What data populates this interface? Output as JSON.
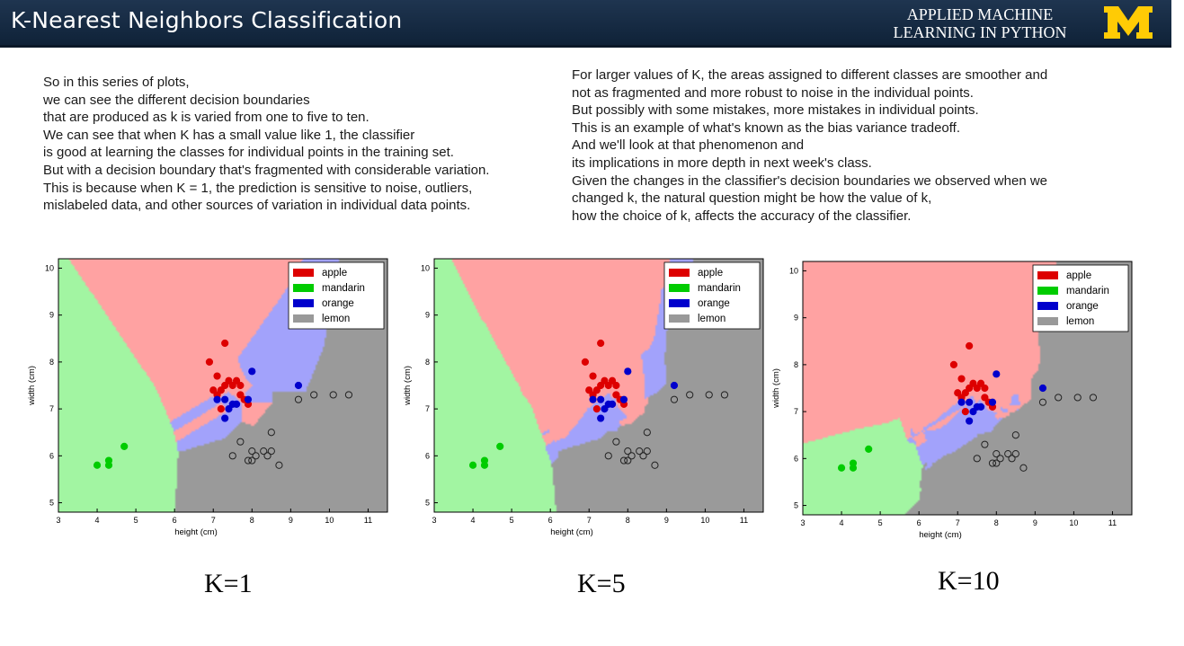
{
  "header": {
    "title": "K-Nearest Neighbors Classification",
    "brand_line1": "APPLIED MACHINE",
    "brand_line2": "LEARNING IN PYTHON",
    "logo_letter": "M",
    "colors": {
      "bar": "#1f3550",
      "logo": "#ffcb05"
    }
  },
  "left_text": [
    "So in this series of plots,",
    "we can see the different decision boundaries",
    "that are produced as k is varied from one to five to ten.",
    "We can see that when K has a small value like 1, the classifier",
    "is good at learning the classes for individual points in the training set.",
    "But with a decision boundary that's fragmented with considerable variation.",
    "This is because when K = 1, the prediction is sensitive to noise, outliers,",
    "mislabeled data, and other sources of variation in individual data points."
  ],
  "right_text": [
    "For larger values of K, the areas assigned to different classes are smoother and",
    "not as fragmented and more robust to noise in the individual points.",
    "But possibly with some mistakes, more mistakes in individual points.",
    "This is an example of what's known as the bias variance tradeoff.",
    "And we'll look at that phenomenon and",
    "its implications in more depth in next week's class.",
    "Given the changes in the classifier's decision boundaries we observed when we",
    "changed k, the natural question might be how the value of k,",
    "how the choice of k, affects the accuracy of the classifier."
  ],
  "chart_data": {
    "type": "scatter",
    "xlabel": "height (cm)",
    "ylabel": "width (cm)",
    "xlim": [
      3,
      11.5
    ],
    "ylim": [
      4.8,
      10.2
    ],
    "xticks": [
      3,
      4,
      5,
      6,
      7,
      8,
      9,
      10,
      11
    ],
    "yticks": [
      5,
      6,
      7,
      8,
      9,
      10
    ],
    "legend": [
      "apple",
      "mandarin",
      "orange",
      "lemon"
    ],
    "legend_position": "top-right",
    "colors": {
      "apple": "#dd0000",
      "mandarin": "#00cc00",
      "orange": "#0000cc",
      "lemon": "#999999",
      "region_apple": "#ffa2a2",
      "region_mandarin": "#a2f5a2",
      "region_orange": "#a2a2fb",
      "region_lemon": "#9a9a9a"
    },
    "points": {
      "apple": [
        [
          7.3,
          8.4
        ],
        [
          6.9,
          8.0
        ],
        [
          7.1,
          7.7
        ],
        [
          7.4,
          7.6
        ],
        [
          7.6,
          7.6
        ],
        [
          7.3,
          7.5
        ],
        [
          7.5,
          7.5
        ],
        [
          7.2,
          7.4
        ],
        [
          7.7,
          7.5
        ],
        [
          7.0,
          7.4
        ],
        [
          7.1,
          7.3
        ],
        [
          7.7,
          7.3
        ],
        [
          7.8,
          7.2
        ],
        [
          7.9,
          7.1
        ],
        [
          7.2,
          7.0
        ]
      ],
      "mandarin": [
        [
          4.0,
          5.8
        ],
        [
          4.3,
          5.8
        ],
        [
          4.3,
          5.9
        ],
        [
          4.7,
          6.2
        ]
      ],
      "orange": [
        [
          8.0,
          7.8
        ],
        [
          9.2,
          7.5
        ],
        [
          7.1,
          7.2
        ],
        [
          7.3,
          7.2
        ],
        [
          7.5,
          7.1
        ],
        [
          7.9,
          7.2
        ],
        [
          7.6,
          7.1
        ],
        [
          7.4,
          7.0
        ],
        [
          7.3,
          6.8
        ]
      ],
      "lemon": [
        [
          9.2,
          7.2
        ],
        [
          9.6,
          7.3
        ],
        [
          10.1,
          7.3
        ],
        [
          10.5,
          7.3
        ],
        [
          8.5,
          6.5
        ],
        [
          7.7,
          6.3
        ],
        [
          7.5,
          6.0
        ],
        [
          8.0,
          6.1
        ],
        [
          8.3,
          6.1
        ],
        [
          8.5,
          6.1
        ],
        [
          8.1,
          6.0
        ],
        [
          8.4,
          6.0
        ],
        [
          7.9,
          5.9
        ],
        [
          8.0,
          5.9
        ],
        [
          8.7,
          5.8
        ]
      ]
    },
    "panels": [
      {
        "caption": "K=1",
        "k": 1
      },
      {
        "caption": "K=5",
        "k": 5
      },
      {
        "caption": "K=10",
        "k": 10
      }
    ]
  }
}
